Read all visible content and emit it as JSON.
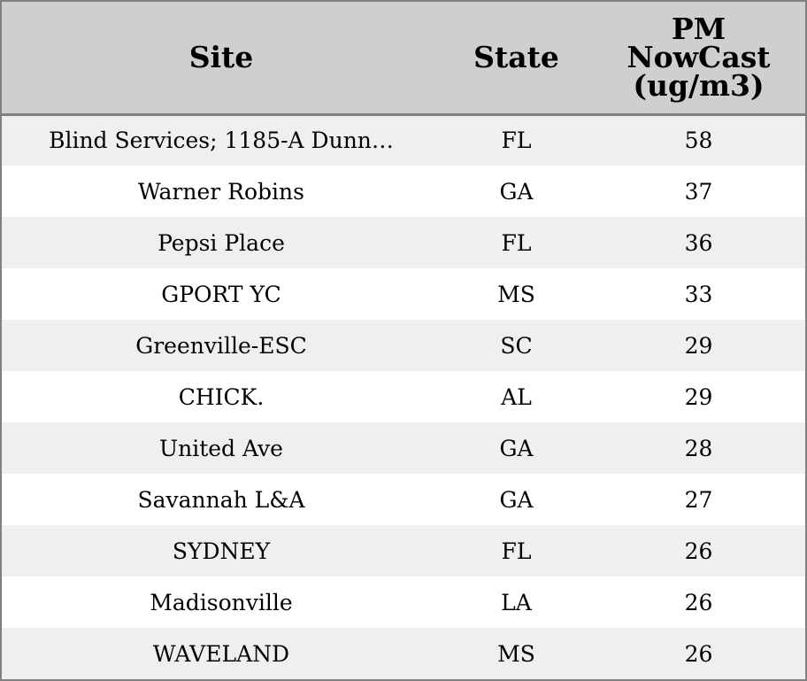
{
  "chart_data": {
    "type": "table",
    "columns": [
      "Site",
      "State",
      "PM NowCast (ug/m3)"
    ],
    "header_lines": {
      "site": "Site",
      "state": "State",
      "pm": [
        "PM",
        "NowCast",
        "(ug/m3)"
      ]
    },
    "rows": [
      {
        "site": "Blind Services; 1185-A Dunn…",
        "state": "FL",
        "pm": "58"
      },
      {
        "site": "Warner Robins",
        "state": "GA",
        "pm": "37"
      },
      {
        "site": "Pepsi Place",
        "state": "FL",
        "pm": "36"
      },
      {
        "site": "GPORT YC",
        "state": "MS",
        "pm": "33"
      },
      {
        "site": "Greenville-ESC",
        "state": "SC",
        "pm": "29"
      },
      {
        "site": "CHICK.",
        "state": "AL",
        "pm": "29"
      },
      {
        "site": "United Ave",
        "state": "GA",
        "pm": "28"
      },
      {
        "site": "Savannah L&A",
        "state": "GA",
        "pm": "27"
      },
      {
        "site": "SYDNEY",
        "state": "FL",
        "pm": "26"
      },
      {
        "site": "Madisonville",
        "state": "LA",
        "pm": "26"
      },
      {
        "site": "WAVELAND",
        "state": "MS",
        "pm": "26"
      }
    ],
    "colors": {
      "header_bg": "#cfcfcf",
      "row_alt_bg": "#efefef",
      "row_bg": "#ffffff",
      "border": "#808080"
    }
  }
}
